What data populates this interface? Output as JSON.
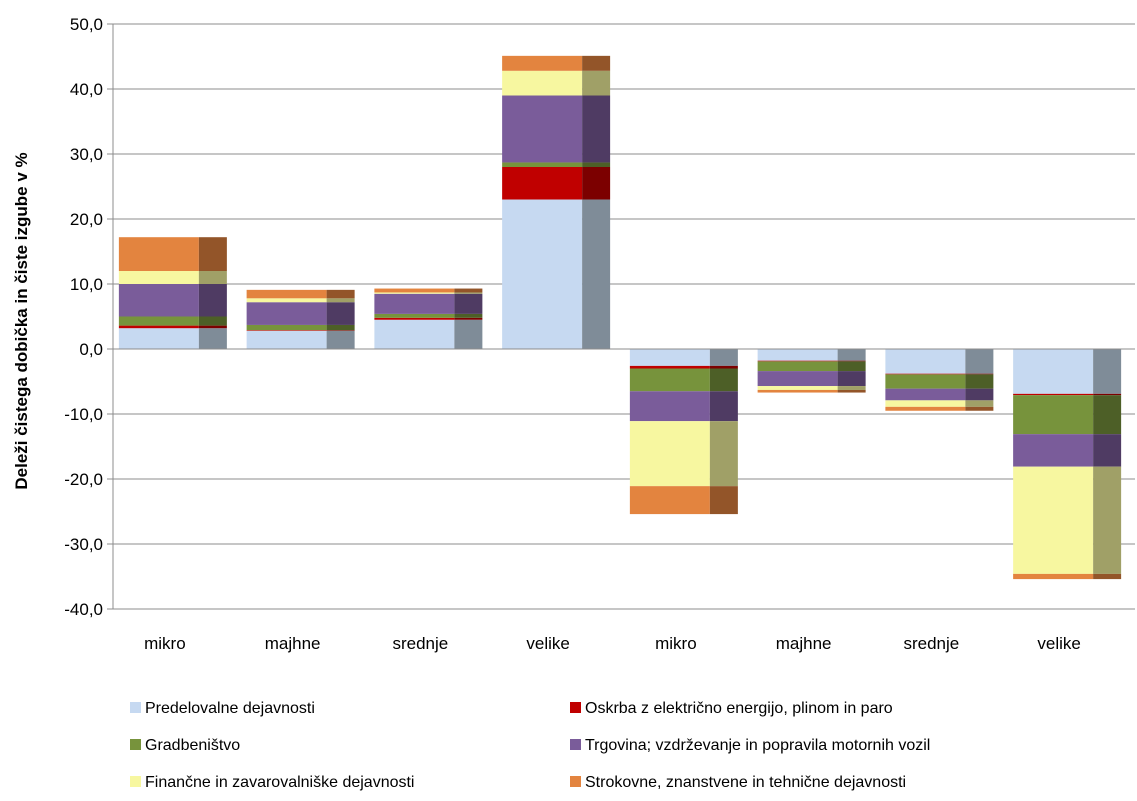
{
  "chart_data": {
    "type": "bar",
    "stacked": true,
    "ylabel": "Deleži čistega dobička in čiste izgube v %",
    "xlabel": "",
    "ylim": [
      -40,
      50
    ],
    "yticks": [
      50,
      40,
      30,
      20,
      10,
      0,
      -10,
      -20,
      -30,
      -40
    ],
    "ytick_labels": [
      "50,0",
      "40,0",
      "30,0",
      "20,0",
      "10,0",
      "0,0",
      "-10,0",
      "-20,0",
      "-30,0",
      "-40,0"
    ],
    "gridlines": true,
    "legend_position": "bottom",
    "categories": [
      "mikro",
      "majhne",
      "srednje",
      "velike",
      "mikro",
      "majhne",
      "srednje",
      "velike"
    ],
    "series": [
      {
        "name": "Predelovalne dejavnosti",
        "color": "#c6d9f1",
        "shade": "#7f8c98",
        "values": [
          3.2,
          2.8,
          4.5,
          23.0,
          -2.6,
          -1.8,
          -3.8,
          -6.9
        ]
      },
      {
        "name": "Oskrba z električno energijo, plinom in paro",
        "color": "#c00000",
        "shade": "#7c0000",
        "values": [
          0.4,
          0.1,
          0.3,
          5.0,
          -0.4,
          -0.1,
          -0.1,
          -0.2
        ]
      },
      {
        "name": "Gradbeništvo",
        "color": "#77933c",
        "shade": "#4d5f27",
        "values": [
          1.4,
          0.8,
          0.6,
          0.7,
          -3.5,
          -1.5,
          -2.2,
          -6.0
        ]
      },
      {
        "name": "Trgovina; vzdrževanje in popravila motornih vozil",
        "color": "#7a5c9a",
        "shade": "#4f3b63",
        "values": [
          5.0,
          3.5,
          3.1,
          10.3,
          -4.6,
          -2.3,
          -1.8,
          -5.0
        ]
      },
      {
        "name": "Finančne in zavarovalniške dejavnosti",
        "color": "#f7f7a0",
        "shade": "#a0a067",
        "values": [
          2.0,
          0.6,
          0.2,
          3.8,
          -10.0,
          -0.6,
          -1.0,
          -16.5
        ]
      },
      {
        "name": "Strokovne, znanstvene in tehnične dejavnosti",
        "color": "#e3843f",
        "shade": "#935529",
        "values": [
          5.2,
          1.3,
          0.6,
          2.3,
          -4.3,
          -0.4,
          -0.6,
          -0.8
        ]
      }
    ]
  }
}
